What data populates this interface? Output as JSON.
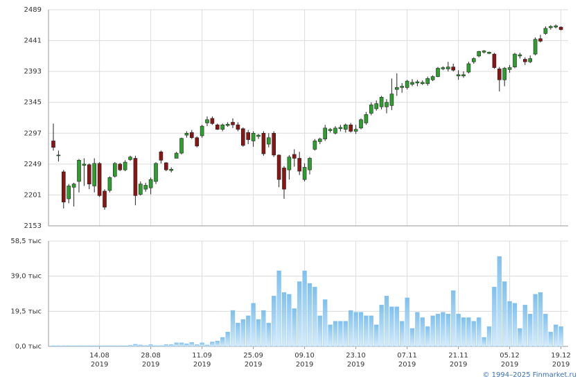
{
  "chart_data": {
    "type": "candlestick",
    "categories": [
      null,
      null,
      null,
      null,
      null,
      null,
      null,
      null,
      null,
      "14.08",
      null,
      null,
      null,
      null,
      null,
      null,
      null,
      null,
      null,
      "28.08",
      null,
      null,
      null,
      null,
      null,
      null,
      null,
      null,
      null,
      "11.09",
      null,
      null,
      null,
      null,
      null,
      null,
      null,
      null,
      null,
      "25.09",
      null,
      null,
      null,
      null,
      null,
      null,
      null,
      null,
      null,
      "09.10",
      null,
      null,
      null,
      null,
      null,
      null,
      null,
      null,
      null,
      "23.10",
      null,
      null,
      null,
      null,
      null,
      null,
      null,
      null,
      null,
      "07.11",
      null,
      null,
      null,
      null,
      null,
      null,
      null,
      null,
      null,
      "21.11",
      null,
      null,
      null,
      null,
      null,
      null,
      null,
      null,
      null,
      "05.12",
      null,
      null,
      null,
      null,
      null,
      null,
      null,
      null,
      null,
      "19.12"
    ],
    "year": "2019",
    "open": [
      2285,
      2262,
      2237,
      2195,
      2213,
      2222,
      2247,
      2248,
      2215,
      2250,
      2207,
      2208,
      2230,
      2249,
      2240,
      2256,
      2258,
      2202,
      2210,
      2212,
      2222,
      2268,
      2251,
      2239,
      2258,
      2266,
      2294,
      2298,
      2290,
      2293,
      2313,
      2320,
      2310,
      2303,
      2309,
      2314,
      2310,
      2304,
      2298,
      2285,
      2292,
      2297,
      2280,
      2297,
      2263,
      2243,
      2240,
      2264,
      2258,
      2225,
      2240,
      2272,
      2284,
      2288,
      2301,
      2297,
      2304,
      2303,
      2310,
      2300,
      2305,
      2313,
      2328,
      2335,
      2338,
      2338,
      2340,
      2365,
      2368,
      2368,
      2373,
      2375,
      2374,
      2374,
      2380,
      2385,
      2397,
      2397,
      2400,
      2386,
      2386,
      2392,
      2408,
      2417,
      2423,
      2421,
      2420,
      2397,
      2380,
      2396,
      2400,
      2417,
      2412,
      2408,
      2420,
      2444,
      2452,
      2461,
      2462,
      2462
    ],
    "high": [
      2312,
      2270,
      2240,
      2218,
      2220,
      2257,
      2258,
      2250,
      2258,
      2252,
      2210,
      2230,
      2252,
      2251,
      2255,
      2262,
      2262,
      2222,
      2220,
      2228,
      2252,
      2270,
      2252,
      2244,
      2268,
      2290,
      2300,
      2302,
      2292,
      2310,
      2323,
      2323,
      2312,
      2312,
      2314,
      2320,
      2314,
      2306,
      2302,
      2300,
      2296,
      2300,
      2297,
      2300,
      2264,
      2246,
      2263,
      2272,
      2268,
      2250,
      2260,
      2288,
      2290,
      2310,
      2305,
      2308,
      2310,
      2312,
      2313,
      2310,
      2320,
      2330,
      2345,
      2348,
      2355,
      2350,
      2382,
      2390,
      2375,
      2380,
      2381,
      2380,
      2379,
      2385,
      2387,
      2400,
      2401,
      2408,
      2405,
      2395,
      2393,
      2408,
      2415,
      2425,
      2426,
      2424,
      2422,
      2400,
      2400,
      2403,
      2422,
      2422,
      2415,
      2418,
      2446,
      2450,
      2463,
      2465,
      2466,
      2463
    ],
    "low": [
      2270,
      2253,
      2180,
      2188,
      2183,
      2205,
      2215,
      2210,
      2205,
      2198,
      2178,
      2205,
      2228,
      2238,
      2238,
      2254,
      2185,
      2200,
      2206,
      2202,
      2218,
      2250,
      2238,
      2236,
      2258,
      2264,
      2290,
      2288,
      2275,
      2290,
      2308,
      2310,
      2302,
      2300,
      2307,
      2305,
      2300,
      2276,
      2280,
      2276,
      2288,
      2262,
      2275,
      2260,
      2213,
      2195,
      2225,
      2245,
      2232,
      2222,
      2233,
      2270,
      2280,
      2285,
      2298,
      2295,
      2300,
      2298,
      2298,
      2296,
      2303,
      2310,
      2325,
      2332,
      2334,
      2328,
      2333,
      2355,
      2360,
      2365,
      2370,
      2370,
      2372,
      2371,
      2378,
      2384,
      2395,
      2393,
      2393,
      2380,
      2383,
      2390,
      2405,
      2415,
      2421,
      2420,
      2397,
      2362,
      2370,
      2391,
      2398,
      2413,
      2403,
      2406,
      2418,
      2438,
      2450,
      2458,
      2460,
      2457
    ],
    "close": [
      2275,
      2263,
      2190,
      2215,
      2218,
      2255,
      2249,
      2218,
      2250,
      2200,
      2182,
      2228,
      2250,
      2240,
      2252,
      2260,
      2200,
      2218,
      2216,
      2225,
      2250,
      2255,
      2240,
      2241,
      2266,
      2289,
      2297,
      2290,
      2277,
      2308,
      2318,
      2312,
      2303,
      2310,
      2311,
      2310,
      2303,
      2278,
      2287,
      2297,
      2294,
      2265,
      2290,
      2263,
      2225,
      2210,
      2260,
      2258,
      2238,
      2244,
      2258,
      2285,
      2288,
      2305,
      2303,
      2305,
      2306,
      2310,
      2300,
      2303,
      2318,
      2326,
      2341,
      2343,
      2353,
      2345,
      2358,
      2368,
      2370,
      2378,
      2376,
      2377,
      2376,
      2382,
      2385,
      2398,
      2399,
      2400,
      2395,
      2388,
      2388,
      2405,
      2413,
      2424,
      2425,
      2423,
      2399,
      2380,
      2398,
      2399,
      2420,
      2419,
      2408,
      2413,
      2443,
      2440,
      2460,
      2463,
      2464,
      2458
    ],
    "up_color": "#2e9e2e",
    "down_color": "#8b1515",
    "ylim": [
      2153,
      2489
    ],
    "yticks": [
      2153,
      2201,
      2249,
      2297,
      2345,
      2393,
      2441,
      2489
    ],
    "grid": true,
    "volume": {
      "type": "bar",
      "values": [
        0.4,
        0.4,
        0.4,
        0.4,
        0.4,
        0.4,
        0.4,
        0.4,
        0.4,
        0.4,
        0.4,
        0.4,
        0.4,
        0.4,
        0.4,
        0.6,
        1.2,
        0.8,
        0.5,
        1.0,
        0.5,
        0.5,
        1.0,
        1.0,
        2.0,
        2.0,
        1.5,
        2.2,
        1.0,
        2.0,
        0.8,
        2.5,
        3.0,
        5.0,
        8.0,
        20,
        13,
        15,
        17,
        24,
        15,
        20,
        13,
        28,
        42,
        30,
        29,
        21,
        36,
        42,
        35,
        33,
        17,
        26,
        12,
        14,
        14,
        14,
        20,
        19,
        19,
        17,
        17,
        12,
        23,
        28,
        22,
        22,
        14,
        27,
        10,
        19,
        16,
        11,
        17,
        18,
        19,
        18,
        31,
        18,
        16,
        16,
        14,
        16,
        5,
        11,
        33,
        50,
        36,
        25,
        24,
        10,
        23,
        18,
        29,
        30,
        18,
        8,
        12,
        11
      ],
      "color": "#7fc0ee",
      "ylim": [
        0,
        58.5
      ],
      "yticks": [
        {
          "value": 0,
          "label": "0,0 тыс"
        },
        {
          "value": 19.5,
          "label": "19,5 тыс"
        },
        {
          "value": 39,
          "label": "39,0 тыс"
        },
        {
          "value": 58.5,
          "label": "58,5 тыс"
        }
      ]
    }
  },
  "footer": "© 1994–2025 Finmarket.ru"
}
